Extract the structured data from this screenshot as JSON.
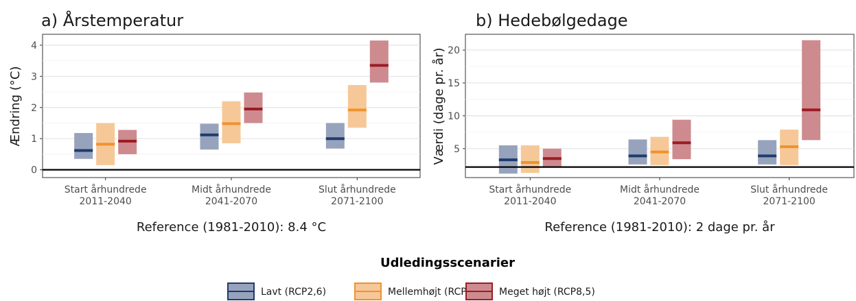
{
  "legend": {
    "title": "Udledingsscenarier",
    "items": [
      {
        "label": "Lavt (RCP2,6)",
        "color": "#1f3b6e",
        "fill": "#97a3bc"
      },
      {
        "label": "Mellemhøjt (RCP4,5)",
        "color": "#f0922e",
        "fill": "#f6c898"
      },
      {
        "label": "Meget højt (RCP8,5)",
        "color": "#9b1c24",
        "fill": "#cd8b8f"
      }
    ]
  },
  "chart_data": [
    {
      "type": "box-range",
      "title": "a) Årstemperatur",
      "ylabel": "Ændring (°C)",
      "xlabel": "Reference (1981-2010): 8.4 °C",
      "ylim": [
        -0.25,
        4.35
      ],
      "yticks": [
        0,
        1,
        2,
        3,
        4
      ],
      "reference_line": 0,
      "grid": true,
      "categories": [
        {
          "line1": "Start århundrede",
          "line2": "2011-2040"
        },
        {
          "line1": "Midt århundrede",
          "line2": "2041-2070"
        },
        {
          "line1": "Slut århundrede",
          "line2": "2071-2100"
        }
      ],
      "series": [
        {
          "name": "Lavt (RCP2,6)",
          "low": [
            0.35,
            0.65,
            0.68
          ],
          "median": [
            0.62,
            1.12,
            1.0
          ],
          "high": [
            1.18,
            1.48,
            1.5
          ]
        },
        {
          "name": "Mellemhøjt (RCP4,5)",
          "low": [
            0.15,
            0.85,
            1.35
          ],
          "median": [
            0.82,
            1.48,
            1.92
          ],
          "high": [
            1.5,
            2.2,
            2.72
          ]
        },
        {
          "name": "Meget højt (RCP8,5)",
          "low": [
            0.5,
            1.5,
            2.8
          ],
          "median": [
            0.92,
            1.95,
            3.35
          ],
          "high": [
            1.28,
            2.48,
            4.15
          ]
        }
      ]
    },
    {
      "type": "box-range",
      "title": "b) Hedebølgedage",
      "ylabel": "Værdi (dage pr. år)",
      "xlabel": "Reference (1981-2010): 2 dage pr. år",
      "ylim": [
        0.6,
        22.4
      ],
      "yticks": [
        5,
        10,
        15,
        20
      ],
      "reference_line": 2.2,
      "grid": true,
      "categories": [
        {
          "line1": "Start århundrede",
          "line2": "2011-2040"
        },
        {
          "line1": "Midt århundrede",
          "line2": "2041-2070"
        },
        {
          "line1": "Slut århundrede",
          "line2": "2071-2100"
        }
      ],
      "series": [
        {
          "name": "Lavt (RCP2,6)",
          "low": [
            1.2,
            2.6,
            2.6
          ],
          "median": [
            3.3,
            3.9,
            3.9
          ],
          "high": [
            5.5,
            6.4,
            6.3
          ]
        },
        {
          "name": "Mellemhøjt (RCP4,5)",
          "low": [
            1.3,
            2.5,
            2.5
          ],
          "median": [
            2.9,
            4.5,
            5.3
          ],
          "high": [
            5.5,
            6.8,
            7.9
          ]
        },
        {
          "name": "Meget højt (RCP8,5)",
          "low": [
            2.2,
            3.4,
            6.3
          ],
          "median": [
            3.5,
            5.9,
            10.9
          ],
          "high": [
            5.0,
            9.4,
            21.5
          ]
        }
      ]
    }
  ]
}
